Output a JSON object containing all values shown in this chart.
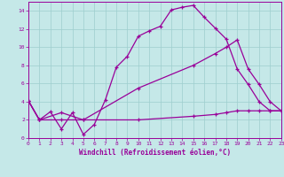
{
  "xlabel": "Windchill (Refroidissement éolien,°C)",
  "xlim": [
    0,
    23
  ],
  "ylim": [
    0,
    15
  ],
  "xticks": [
    0,
    1,
    2,
    3,
    4,
    5,
    6,
    7,
    8,
    9,
    10,
    11,
    12,
    13,
    14,
    15,
    16,
    17,
    18,
    19,
    20,
    21,
    22,
    23
  ],
  "yticks": [
    0,
    2,
    4,
    6,
    8,
    10,
    12,
    14
  ],
  "background_color": "#c5e8e8",
  "grid_color": "#9ecece",
  "line_color": "#990099",
  "curve1_x": [
    0,
    1,
    2,
    3,
    4,
    5,
    6,
    7,
    8,
    9,
    10,
    11,
    12,
    13,
    14,
    15,
    16,
    17,
    18,
    19,
    20,
    21,
    22,
    23
  ],
  "curve1_y": [
    4.1,
    2.0,
    2.9,
    1.0,
    2.8,
    0.4,
    1.5,
    4.2,
    7.8,
    9.0,
    11.2,
    11.8,
    12.3,
    14.1,
    14.4,
    14.6,
    13.3,
    12.1,
    10.9,
    7.6,
    5.9,
    4.0,
    3.0,
    3.0
  ],
  "curve2_x": [
    0,
    1,
    3,
    5,
    10,
    15,
    17,
    18,
    19,
    20,
    21,
    22,
    23
  ],
  "curve2_y": [
    4.1,
    2.0,
    2.8,
    2.0,
    5.5,
    8.0,
    9.3,
    10.0,
    10.8,
    7.6,
    5.9,
    4.0,
    3.0
  ],
  "curve3_x": [
    0,
    1,
    3,
    5,
    10,
    15,
    17,
    18,
    19,
    20,
    21,
    22,
    23
  ],
  "curve3_y": [
    4.1,
    2.0,
    2.0,
    2.0,
    2.0,
    2.4,
    2.6,
    2.8,
    3.0,
    3.0,
    3.0,
    3.0,
    3.0
  ]
}
